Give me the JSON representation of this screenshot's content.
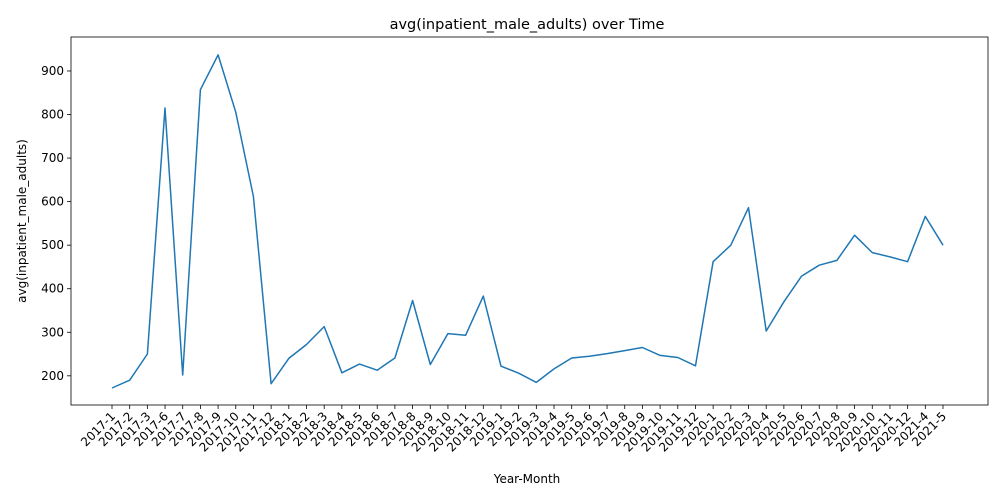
{
  "chart_data": {
    "type": "line",
    "title": "avg(inpatient_male_adults) over Time",
    "xlabel": "Year-Month",
    "ylabel": "avg(inpatient_male_adults)",
    "ylim": [
      133,
      978
    ],
    "yticks": [
      200,
      300,
      400,
      500,
      600,
      700,
      800,
      900
    ],
    "grid": false,
    "line_color": "#1f77b4",
    "categories": [
      "2017-1",
      "2017-2",
      "2017-3",
      "2017-6",
      "2017-7",
      "2017-8",
      "2017-9",
      "2017-10",
      "2017-11",
      "2017-12",
      "2018-1",
      "2018-2",
      "2018-3",
      "2018-4",
      "2018-5",
      "2018-6",
      "2018-7",
      "2018-8",
      "2018-9",
      "2018-10",
      "2018-11",
      "2018-12",
      "2019-1",
      "2019-2",
      "2019-3",
      "2019-4",
      "2019-5",
      "2019-6",
      "2019-7",
      "2019-8",
      "2019-9",
      "2019-10",
      "2019-11",
      "2019-12",
      "2020-1",
      "2020-2",
      "2020-3",
      "2020-4",
      "2020-5",
      "2020-6",
      "2020-7",
      "2020-8",
      "2020-9",
      "2020-10",
      "2020-11",
      "2020-12",
      "2021-4",
      "2021-5"
    ],
    "series": [
      {
        "values": [
          172,
          190,
          250,
          815,
          202,
          857,
          937,
          805,
          612,
          182,
          240,
          272,
          313,
          207,
          227,
          213,
          241,
          373,
          226,
          297,
          293,
          383,
          222,
          206,
          185,
          216,
          241,
          245,
          251,
          258,
          265,
          247,
          242,
          223,
          462,
          500,
          586,
          303,
          370,
          429,
          454,
          465,
          523,
          483,
          473,
          462,
          566,
          500
        ]
      }
    ]
  }
}
